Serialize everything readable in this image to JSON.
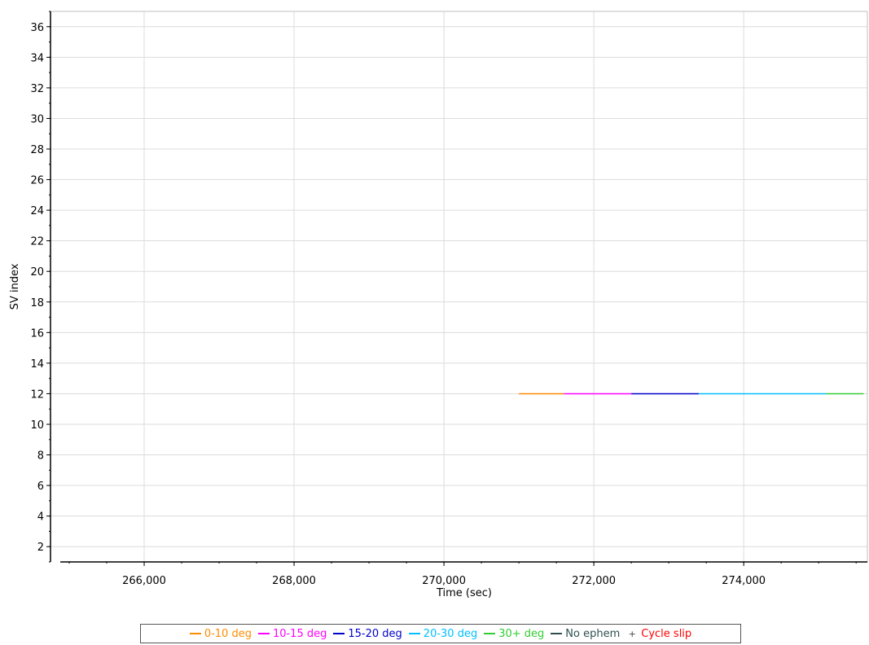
{
  "chart_data": {
    "type": "line",
    "title": "",
    "xlabel": "Time (sec)",
    "ylabel": "SV index",
    "xlim": [
      264750,
      275650
    ],
    "ylim": [
      1,
      37
    ],
    "x_ticks": [
      266000,
      268000,
      270000,
      272000,
      274000
    ],
    "x_tick_labels": [
      "266,000",
      "268,000",
      "270,000",
      "272,000",
      "274,000"
    ],
    "y_ticks": [
      2,
      4,
      6,
      8,
      10,
      12,
      14,
      16,
      18,
      20,
      22,
      24,
      26,
      28,
      30,
      32,
      34,
      36
    ],
    "y_tick_labels": [
      "2",
      "4",
      "6",
      "8",
      "10",
      "12",
      "14",
      "16",
      "18",
      "20",
      "22",
      "24",
      "26",
      "28",
      "30",
      "32",
      "34",
      "36"
    ],
    "grid": true,
    "legend_position": "bottom",
    "series": [
      {
        "name": "0-10 deg",
        "color": "#ff8c00",
        "segments": [
          {
            "sv": 12,
            "x": [
              271000,
              271600
            ]
          }
        ]
      },
      {
        "name": "10-15 deg",
        "color": "#ff00ff",
        "segments": [
          {
            "sv": 12,
            "x": [
              271600,
              272500
            ]
          }
        ]
      },
      {
        "name": "15-20 deg",
        "color": "#0000cd",
        "segments": [
          {
            "sv": 12,
            "x": [
              272500,
              273400
            ]
          }
        ]
      },
      {
        "name": "20-30 deg",
        "color": "#00bfff",
        "segments": [
          {
            "sv": 12,
            "x": [
              273400,
              275100
            ]
          }
        ]
      },
      {
        "name": "30+ deg",
        "color": "#32cd32",
        "segments": [
          {
            "sv": 12,
            "x": [
              275100,
              275600
            ]
          }
        ]
      },
      {
        "name": "No ephem",
        "color": "#2f4f4f",
        "segments": []
      },
      {
        "name": "Cycle slip",
        "color": "#ff0000",
        "marker": "+",
        "segments": []
      }
    ]
  }
}
